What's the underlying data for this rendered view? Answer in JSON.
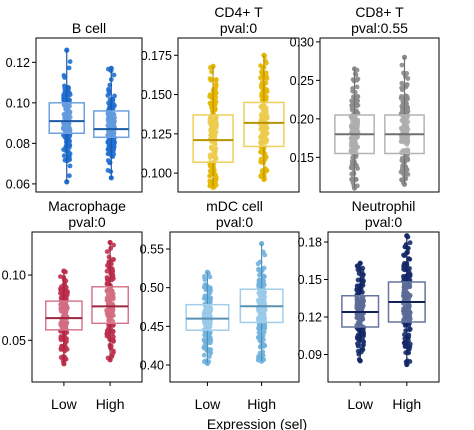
{
  "chart_data": [
    {
      "type": "box",
      "title": "B cell",
      "subtitle": "",
      "color": "#1f6fd1",
      "categories": [
        "",
        ""
      ],
      "yticks": [
        0.06,
        0.08,
        0.1,
        0.12
      ],
      "ytick_labels": [
        "0.06",
        "0.08",
        "0.10",
        "0.12"
      ],
      "ylim": [
        0.056,
        0.132
      ],
      "series": [
        {
          "q1": 0.085,
          "median": 0.091,
          "q3": 0.1,
          "min": 0.061,
          "max": 0.126
        },
        {
          "q1": 0.083,
          "median": 0.087,
          "q3": 0.096,
          "min": 0.063,
          "max": 0.117
        }
      ]
    },
    {
      "type": "box",
      "title": "CD4+ T",
      "subtitle": "pval:0",
      "color": "#e6b600",
      "categories": [
        "",
        ""
      ],
      "yticks": [
        0.1,
        0.125,
        0.15,
        0.175
      ],
      "ytick_labels": [
        "0.100",
        "0.125",
        "0.150",
        "0.175"
      ],
      "ylim": [
        0.088,
        0.186
      ],
      "series": [
        {
          "q1": 0.107,
          "median": 0.121,
          "q3": 0.137,
          "min": 0.091,
          "max": 0.168
        },
        {
          "q1": 0.117,
          "median": 0.132,
          "q3": 0.145,
          "min": 0.096,
          "max": 0.175
        }
      ]
    },
    {
      "type": "box",
      "title": "CD8+ T",
      "subtitle": "pval:0.55",
      "color": "#8c8c8c",
      "categories": [
        "",
        ""
      ],
      "yticks": [
        0.15,
        0.2,
        0.25,
        0.3
      ],
      "ytick_labels": [
        "0.15",
        "0.20",
        "0.25",
        "0.30"
      ],
      "ylim": [
        0.105,
        0.305
      ],
      "series": [
        {
          "q1": 0.155,
          "median": 0.18,
          "q3": 0.205,
          "min": 0.11,
          "max": 0.265
        },
        {
          "q1": 0.155,
          "median": 0.18,
          "q3": 0.205,
          "min": 0.115,
          "max": 0.28
        }
      ]
    },
    {
      "type": "box",
      "title": "Macrophage",
      "subtitle": "pval:0",
      "color": "#c0304f",
      "categories": [
        "Low",
        "High"
      ],
      "yticks": [
        0.05,
        0.1
      ],
      "ytick_labels": [
        "0.05",
        "0.10"
      ],
      "ylim": [
        0.018,
        0.133
      ],
      "series": [
        {
          "q1": 0.058,
          "median": 0.067,
          "q3": 0.08,
          "min": 0.032,
          "max": 0.103
        },
        {
          "q1": 0.063,
          "median": 0.076,
          "q3": 0.091,
          "min": 0.035,
          "max": 0.125
        }
      ]
    },
    {
      "type": "box",
      "title": "mDC cell",
      "subtitle": "pval:0",
      "color": "#6fb3e0",
      "categories": [
        "Low",
        "High"
      ],
      "yticks": [
        0.4,
        0.45,
        0.5,
        0.55
      ],
      "ytick_labels": [
        "0.40",
        "0.45",
        "0.50",
        "0.55"
      ],
      "ylim": [
        0.378,
        0.572
      ],
      "series": [
        {
          "q1": 0.445,
          "median": 0.46,
          "q3": 0.478,
          "min": 0.402,
          "max": 0.52
        },
        {
          "q1": 0.455,
          "median": 0.476,
          "q3": 0.498,
          "min": 0.405,
          "max": 0.557
        }
      ]
    },
    {
      "type": "box",
      "title": "Neutrophil",
      "subtitle": "pval:0",
      "color": "#152b6b",
      "categories": [
        "Low",
        "High"
      ],
      "yticks": [
        0.09,
        0.12,
        0.15,
        0.18
      ],
      "ytick_labels": [
        "0.09",
        "0.12",
        "0.15",
        "0.18"
      ],
      "ylim": [
        0.068,
        0.188
      ],
      "series": [
        {
          "q1": 0.112,
          "median": 0.124,
          "q3": 0.137,
          "min": 0.085,
          "max": 0.163
        },
        {
          "q1": 0.116,
          "median": 0.132,
          "q3": 0.148,
          "min": 0.082,
          "max": 0.185
        }
      ]
    }
  ],
  "xlabel": "Expression (sel)"
}
